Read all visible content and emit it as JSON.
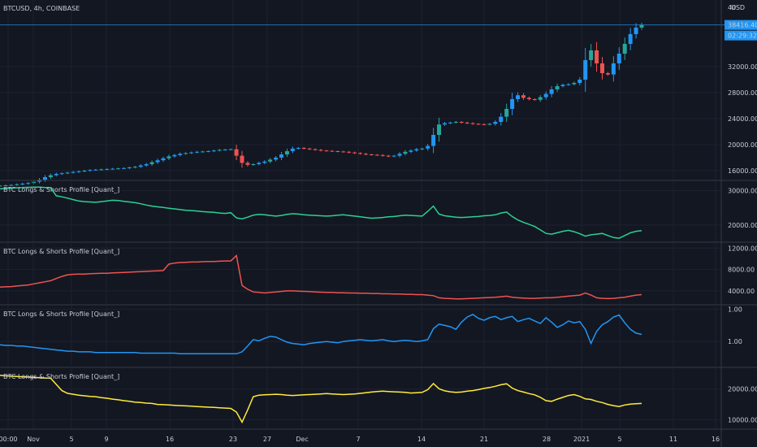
{
  "header": {
    "symbol": "BTCUSD, 4h, COINBASE",
    "currency": "USD",
    "price_tag": "38416.40",
    "time_tag": "02:29:32"
  },
  "colors": {
    "background": "#131722",
    "grid": "#1e2230",
    "divider": "#363a45",
    "text": "#c9ccd4",
    "up": "#26a69a",
    "up_alt": "#2196f3",
    "down": "#ef5350",
    "accent": "#2196f3",
    "green": "#2bd192",
    "red": "#ef5350",
    "blue": "#2196f3",
    "yellow": "#ffeb3b"
  },
  "chart_data": [
    {
      "pane": "price",
      "type": "candlestick",
      "title": "BTCUSD, 4h, COINBASE",
      "ylabel": "USD",
      "ylim": [
        15000,
        40000
      ],
      "y_ticks": [
        "16000.00",
        "20000.00",
        "24000.00",
        "28000.00",
        "32000.00"
      ],
      "y_top_label": "40",
      "series": [
        {
          "name": "BTCUSD",
          "values": [
            13700,
            13750,
            13800,
            13900,
            14000,
            14100,
            14300,
            14600,
            15000,
            15300,
            15500,
            15600,
            15700,
            15800,
            15900,
            16000,
            16100,
            16150,
            16200,
            16250,
            16300,
            16350,
            16400,
            16500,
            16600,
            16800,
            17000,
            17300,
            17600,
            17900,
            18200,
            18400,
            18600,
            18700,
            18800,
            18900,
            18950,
            19000,
            19100,
            19200,
            19250,
            19300,
            18300,
            17200,
            16900,
            17000,
            17200,
            17400,
            17700,
            18000,
            18500,
            19000,
            19400,
            19500,
            19400,
            19300,
            19200,
            19100,
            19050,
            19000,
            18950,
            18900,
            18800,
            18700,
            18600,
            18500,
            18450,
            18400,
            18300,
            18200,
            18300,
            18600,
            18900,
            19100,
            19300,
            19400,
            19800,
            21500,
            23100,
            23300,
            23400,
            23500,
            23400,
            23300,
            23200,
            23150,
            23100,
            23200,
            23500,
            24300,
            25500,
            27000,
            27600,
            27200,
            27000,
            26900,
            27300,
            27800,
            28500,
            29000,
            29200,
            29300,
            29500,
            30000,
            33000,
            34500,
            32500,
            31000,
            30800,
            32500,
            34000,
            35500,
            37000,
            38000,
            38416
          ]
        }
      ],
      "price_line": 38416.4
    },
    {
      "pane": "green",
      "type": "line",
      "title": "BTC Longs & Shorts Profile [Quant_]",
      "ylim": [
        16000,
        32000
      ],
      "y_ticks": [
        "20000.00",
        "30000.00"
      ],
      "series": [
        {
          "name": "",
          "values": [
            30500,
            30600,
            30700,
            30800,
            30900,
            30950,
            31000,
            31000,
            30900,
            30800,
            28500,
            28200,
            27800,
            27400,
            27000,
            26800,
            26700,
            26600,
            26800,
            27000,
            27200,
            27100,
            26900,
            26700,
            26500,
            26200,
            25800,
            25500,
            25300,
            25100,
            24900,
            24700,
            24500,
            24300,
            24200,
            24100,
            23900,
            23800,
            23700,
            23500,
            23400,
            23600,
            22100,
            21800,
            22300,
            22900,
            23100,
            23000,
            22800,
            22600,
            22800,
            23100,
            23300,
            23200,
            23000,
            22900,
            22800,
            22700,
            22600,
            22700,
            22900,
            23000,
            22800,
            22600,
            22400,
            22200,
            22000,
            22100,
            22200,
            22400,
            22500,
            22700,
            22900,
            22800,
            22700,
            22600,
            24000,
            25500,
            23200,
            22700,
            22500,
            22300,
            22200,
            22300,
            22400,
            22500,
            22700,
            22800,
            23000,
            23500,
            23800,
            22500,
            21500,
            20800,
            20200,
            19600,
            18600,
            17600,
            17400,
            17800,
            18200,
            18500,
            18100,
            17500,
            16800,
            17200,
            17400,
            17600,
            17000,
            16400,
            16200,
            17000,
            17800,
            18200,
            18400
          ]
        }
      ]
    },
    {
      "pane": "red",
      "type": "line",
      "title": "BTC Longs & Shorts Profile [Quant_]",
      "ylim": [
        2000,
        12500
      ],
      "y_ticks": [
        "4000.00",
        "8000.00",
        "12000.00"
      ],
      "series": [
        {
          "name": "",
          "values": [
            4700,
            4750,
            4800,
            4900,
            5000,
            5100,
            5300,
            5500,
            5700,
            5900,
            6300,
            6700,
            7000,
            7100,
            7150,
            7150,
            7200,
            7250,
            7300,
            7300,
            7350,
            7400,
            7450,
            7500,
            7550,
            7600,
            7650,
            7700,
            7750,
            7800,
            9000,
            9200,
            9300,
            9350,
            9400,
            9400,
            9450,
            9500,
            9500,
            9550,
            9600,
            9600,
            10600,
            5000,
            4300,
            3800,
            3700,
            3600,
            3700,
            3800,
            3900,
            4000,
            4000,
            3950,
            3900,
            3850,
            3800,
            3750,
            3700,
            3700,
            3650,
            3650,
            3600,
            3600,
            3550,
            3550,
            3500,
            3500,
            3450,
            3450,
            3400,
            3400,
            3350,
            3350,
            3300,
            3300,
            3200,
            3100,
            2700,
            2600,
            2550,
            2500,
            2500,
            2550,
            2600,
            2650,
            2700,
            2750,
            2800,
            2900,
            3000,
            2800,
            2700,
            2650,
            2600,
            2600,
            2650,
            2700,
            2700,
            2800,
            2900,
            3000,
            3100,
            3200,
            3600,
            3200,
            2700,
            2600,
            2550,
            2600,
            2700,
            2800,
            3000,
            3200,
            3300
          ]
        }
      ]
    },
    {
      "pane": "blue",
      "type": "line",
      "title": "BTC Longs & Shorts Profile [Quant_]",
      "ylim": [
        0.7,
        1.57
      ],
      "y_ticks": [
        "1.00",
        "1.00"
      ],
      "series": [
        {
          "name": "",
          "values": [
            1.0,
            0.99,
            0.99,
            0.98,
            0.98,
            0.97,
            0.96,
            0.95,
            0.94,
            0.93,
            0.92,
            0.91,
            0.9,
            0.9,
            0.89,
            0.89,
            0.89,
            0.88,
            0.88,
            0.88,
            0.88,
            0.88,
            0.88,
            0.88,
            0.88,
            0.87,
            0.87,
            0.87,
            0.87,
            0.87,
            0.87,
            0.87,
            0.86,
            0.86,
            0.86,
            0.86,
            0.86,
            0.86,
            0.86,
            0.86,
            0.86,
            0.86,
            0.86,
            0.89,
            0.98,
            1.08,
            1.06,
            1.1,
            1.13,
            1.12,
            1.08,
            1.04,
            1.02,
            1.01,
            1.0,
            1.02,
            1.03,
            1.04,
            1.05,
            1.04,
            1.03,
            1.05,
            1.06,
            1.07,
            1.08,
            1.07,
            1.06,
            1.07,
            1.08,
            1.06,
            1.05,
            1.06,
            1.07,
            1.06,
            1.05,
            1.06,
            1.08,
            1.25,
            1.32,
            1.3,
            1.28,
            1.24,
            1.35,
            1.43,
            1.47,
            1.41,
            1.38,
            1.42,
            1.44,
            1.39,
            1.42,
            1.44,
            1.36,
            1.39,
            1.41,
            1.37,
            1.33,
            1.42,
            1.35,
            1.27,
            1.31,
            1.37,
            1.34,
            1.36,
            1.24,
            1.02,
            1.21,
            1.31,
            1.36,
            1.43,
            1.46,
            1.34,
            1.24,
            1.18,
            1.16
          ]
        }
      ]
    },
    {
      "pane": "yellow",
      "type": "line",
      "title": "BTC Longs & Shorts Profile [Quant_]",
      "ylim": [
        8000,
        26000
      ],
      "y_ticks": [
        "10000.00",
        "20000.00"
      ],
      "series": [
        {
          "name": "",
          "values": [
            24500,
            24300,
            24200,
            24100,
            24000,
            23900,
            23800,
            23700,
            23600,
            23500,
            21500,
            19500,
            18600,
            18300,
            18000,
            17800,
            17600,
            17500,
            17200,
            17000,
            16700,
            16500,
            16200,
            16000,
            15700,
            15600,
            15400,
            15300,
            15000,
            14900,
            14800,
            14700,
            14600,
            14500,
            14400,
            14300,
            14200,
            14100,
            14000,
            13900,
            13800,
            13700,
            12500,
            9200,
            13200,
            17500,
            18000,
            18100,
            18200,
            18300,
            18200,
            18000,
            17900,
            18000,
            18100,
            18200,
            18300,
            18400,
            18500,
            18400,
            18300,
            18200,
            18300,
            18400,
            18600,
            18800,
            19000,
            19200,
            19300,
            19200,
            19100,
            19000,
            18900,
            18700,
            18800,
            18900,
            19800,
            21800,
            20100,
            19400,
            19100,
            18900,
            19000,
            19300,
            19500,
            19800,
            20200,
            20500,
            20900,
            21400,
            21700,
            20300,
            19500,
            19000,
            18500,
            18100,
            17300,
            16200,
            16000,
            16700,
            17300,
            17900,
            18200,
            17600,
            16800,
            16600,
            16000,
            15600,
            15000,
            14600,
            14300,
            14800,
            15100,
            15200,
            15300
          ]
        }
      ]
    }
  ],
  "x_axis": {
    "labels": [
      "00:00",
      "Nov",
      "5",
      "9",
      "16",
      "23",
      "27",
      "Dec",
      "7",
      "14",
      "21",
      "28",
      "2021",
      "5",
      "11",
      "16"
    ]
  }
}
